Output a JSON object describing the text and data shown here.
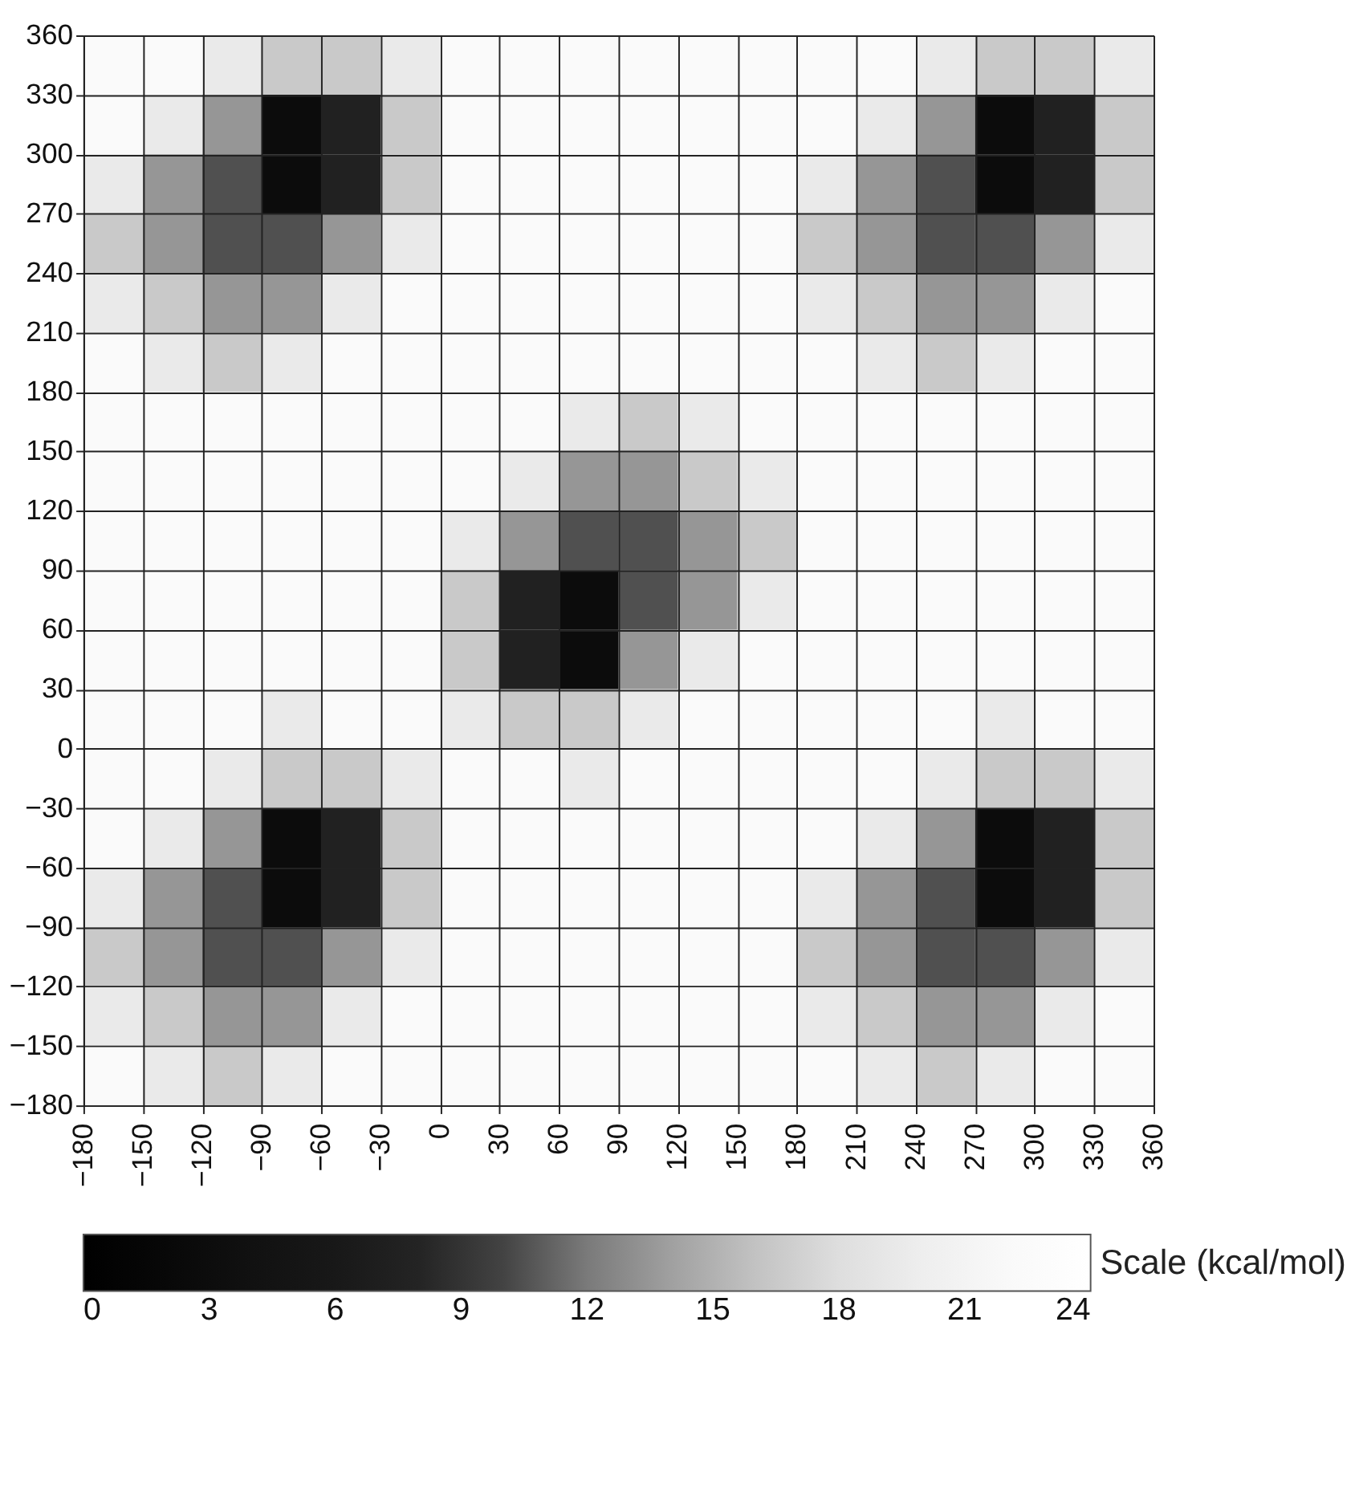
{
  "chart_data": {
    "type": "heatmap",
    "xlim": [
      -180,
      360
    ],
    "ylim": [
      -180,
      360
    ],
    "xticks": [
      -180,
      -150,
      -120,
      -90,
      -60,
      -30,
      0,
      30,
      60,
      90,
      120,
      150,
      180,
      210,
      240,
      270,
      300,
      330,
      360
    ],
    "yticks": [
      -180,
      -150,
      -120,
      -90,
      -60,
      -30,
      0,
      30,
      60,
      90,
      120,
      150,
      180,
      210,
      240,
      270,
      300,
      330,
      360
    ],
    "grid": true,
    "clabel": "Scale (kcal/mol)",
    "cticks": [
      0,
      3,
      6,
      9,
      12,
      15,
      18,
      21,
      24
    ],
    "colors": [
      "#000000",
      "#0c0c0c",
      "#181818",
      "#2a2a2a",
      "#7a7a7a",
      "#b4b4b4",
      "#dedede",
      "#f6f6f6",
      "#ffffff"
    ],
    "cells": [
      [
        22.5,
        22.5,
        19.5,
        16.5,
        16.5,
        19.5,
        22.5,
        22.5,
        22.5,
        22.5,
        22.5,
        22.5,
        22.5,
        22.5,
        19.5,
        16.5,
        16.5,
        19.5
      ],
      [
        22.5,
        19.5,
        13.5,
        3,
        7.5,
        16.5,
        22.5,
        22.5,
        22.5,
        22.5,
        22.5,
        22.5,
        22.5,
        19.5,
        13.5,
        3,
        7.5,
        16.5
      ],
      [
        19.5,
        13.5,
        10.5,
        3,
        7.5,
        16.5,
        22.5,
        22.5,
        22.5,
        22.5,
        22.5,
        22.5,
        19.5,
        13.5,
        10.5,
        3,
        7.5,
        16.5
      ],
      [
        16.5,
        13.5,
        10.5,
        10.5,
        13.5,
        19.5,
        22.5,
        22.5,
        22.5,
        22.5,
        22.5,
        22.5,
        16.5,
        13.5,
        10.5,
        10.5,
        13.5,
        19.5
      ],
      [
        19.5,
        16.5,
        13.5,
        13.5,
        19.5,
        22.5,
        22.5,
        22.5,
        22.5,
        22.5,
        22.5,
        22.5,
        19.5,
        16.5,
        13.5,
        13.5,
        19.5,
        22.5
      ],
      [
        22.5,
        19.5,
        16.5,
        19.5,
        22.5,
        22.5,
        22.5,
        22.5,
        22.5,
        22.5,
        22.5,
        22.5,
        22.5,
        19.5,
        16.5,
        19.5,
        22.5,
        22.5
      ],
      [
        22.5,
        22.5,
        22.5,
        22.5,
        22.5,
        22.5,
        22.5,
        22.5,
        19.5,
        16.5,
        19.5,
        22.5,
        22.5,
        22.5,
        22.5,
        22.5,
        22.5,
        22.5
      ],
      [
        22.5,
        22.5,
        22.5,
        22.5,
        22.5,
        22.5,
        22.5,
        19.5,
        13.5,
        13.5,
        16.5,
        19.5,
        22.5,
        22.5,
        22.5,
        22.5,
        22.5,
        22.5
      ],
      [
        22.5,
        22.5,
        22.5,
        22.5,
        22.5,
        22.5,
        19.5,
        13.5,
        10.5,
        10.5,
        13.5,
        16.5,
        22.5,
        22.5,
        22.5,
        22.5,
        22.5,
        22.5
      ],
      [
        22.5,
        22.5,
        22.5,
        22.5,
        22.5,
        22.5,
        16.5,
        7.5,
        3,
        10.5,
        13.5,
        19.5,
        22.5,
        22.5,
        22.5,
        22.5,
        22.5,
        22.5
      ],
      [
        22.5,
        22.5,
        22.5,
        22.5,
        22.5,
        22.5,
        16.5,
        7.5,
        3,
        13.5,
        19.5,
        22.5,
        22.5,
        22.5,
        22.5,
        22.5,
        22.5,
        22.5
      ],
      [
        22.5,
        22.5,
        22.5,
        19.5,
        22.5,
        22.5,
        19.5,
        16.5,
        16.5,
        19.5,
        22.5,
        22.5,
        22.5,
        22.5,
        22.5,
        19.5,
        22.5,
        22.5
      ],
      [
        22.5,
        22.5,
        19.5,
        16.5,
        16.5,
        19.5,
        22.5,
        22.5,
        19.5,
        22.5,
        22.5,
        22.5,
        22.5,
        22.5,
        19.5,
        16.5,
        16.5,
        19.5
      ],
      [
        22.5,
        19.5,
        13.5,
        3,
        7.5,
        16.5,
        22.5,
        22.5,
        22.5,
        22.5,
        22.5,
        22.5,
        22.5,
        19.5,
        13.5,
        3,
        7.5,
        16.5
      ],
      [
        19.5,
        13.5,
        10.5,
        3,
        7.5,
        16.5,
        22.5,
        22.5,
        22.5,
        22.5,
        22.5,
        22.5,
        19.5,
        13.5,
        10.5,
        3,
        7.5,
        16.5
      ],
      [
        16.5,
        13.5,
        10.5,
        10.5,
        13.5,
        19.5,
        22.5,
        22.5,
        22.5,
        22.5,
        22.5,
        22.5,
        16.5,
        13.5,
        10.5,
        10.5,
        13.5,
        19.5
      ],
      [
        19.5,
        16.5,
        13.5,
        13.5,
        19.5,
        22.5,
        22.5,
        22.5,
        22.5,
        22.5,
        22.5,
        22.5,
        19.5,
        16.5,
        13.5,
        13.5,
        19.5,
        22.5
      ],
      [
        22.5,
        19.5,
        16.5,
        19.5,
        22.5,
        22.5,
        22.5,
        22.5,
        22.5,
        22.5,
        22.5,
        22.5,
        22.5,
        19.5,
        16.5,
        19.5,
        22.5,
        22.5
      ]
    ]
  }
}
